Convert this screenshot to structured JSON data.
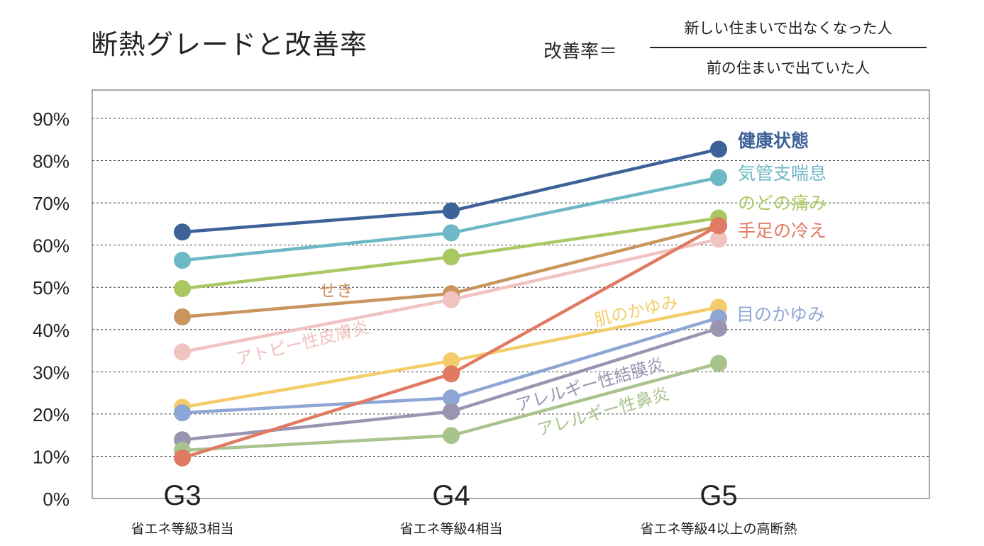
{
  "chart_data": {
    "type": "line",
    "title": "断熱グレードと改善率",
    "formula": {
      "lhs": "改善率＝",
      "numerator": "新しい住まいで出なくなった人",
      "denominator": "前の住まいで出ていた人"
    },
    "categories": [
      "G3",
      "G4",
      "G5"
    ],
    "category_sublabels": [
      "省エネ等級3相当",
      "省エネ等級4相当",
      "省エネ等級4以上の高断熱"
    ],
    "y_ticks": [
      "0%",
      "10%",
      "20%",
      "30%",
      "40%",
      "50%",
      "60%",
      "70%",
      "80%",
      "90%"
    ],
    "ylim": [
      0,
      90
    ],
    "grid": true,
    "series": [
      {
        "name": "健康状態",
        "color": "#3d6298",
        "values": [
          63.1,
          68.1,
          82.7
        ]
      },
      {
        "name": "気管支喘息",
        "color": "#6db8c4",
        "values": [
          56.4,
          62.9,
          76.0
        ]
      },
      {
        "name": "のどの痛み",
        "color": "#a9c862",
        "values": [
          49.7,
          57.2,
          66.4
        ]
      },
      {
        "name": "せき",
        "color": "#c9955f",
        "values": [
          43.0,
          48.5,
          64.6
        ]
      },
      {
        "name": "アトピー性皮膚炎",
        "color": "#f0c2c0",
        "values": [
          34.7,
          47.1,
          61.4
        ]
      },
      {
        "name": "肌のかゆみ",
        "color": "#f4cd6a",
        "values": [
          21.6,
          32.6,
          45.3
        ]
      },
      {
        "name": "目のかゆみ",
        "color": "#8ea6d5",
        "values": [
          20.3,
          23.8,
          42.8
        ]
      },
      {
        "name": "アレルギー性結膜炎",
        "color": "#9b94b0",
        "values": [
          13.9,
          20.6,
          40.3
        ]
      },
      {
        "name": "アレルギー性鼻炎",
        "color": "#a9c38c",
        "values": [
          11.4,
          14.9,
          32.0
        ]
      },
      {
        "name": "手足の冷え",
        "color": "#e07a62",
        "values": [
          9.6,
          29.5,
          64.6
        ]
      }
    ]
  }
}
